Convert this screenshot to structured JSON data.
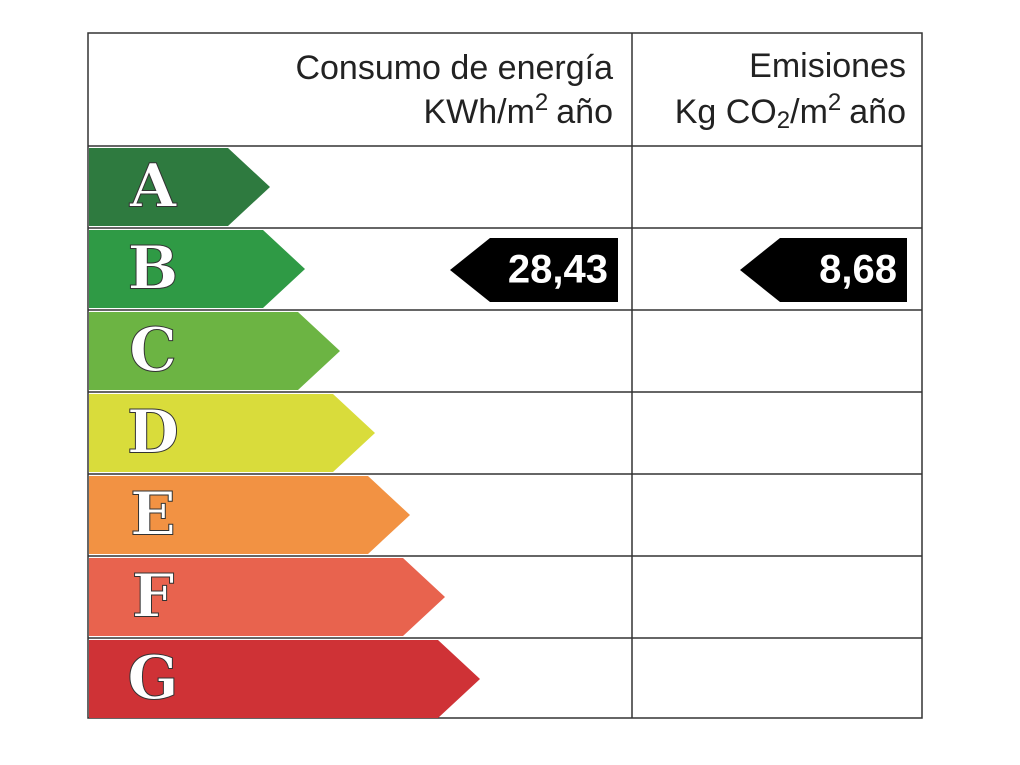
{
  "energy_header": {
    "title": "Consumo de energía",
    "unit_base": "KWh/m",
    "unit_sup": "2",
    "unit_tail": "año"
  },
  "emissions_header": {
    "title": "Emisiones",
    "unit_base": "Kg CO",
    "unit_sub": "2",
    "unit_mid": "/m",
    "unit_sup": "2",
    "unit_tail": "año"
  },
  "rows": [
    {
      "letter": "A",
      "color": "#2e7a3f"
    },
    {
      "letter": "B",
      "color": "#2f9a45",
      "energy": "28,43",
      "emissions": "8,68"
    },
    {
      "letter": "C",
      "color": "#6cb443"
    },
    {
      "letter": "D",
      "color": "#d9dc3b"
    },
    {
      "letter": "E",
      "color": "#f29243"
    },
    {
      "letter": "F",
      "color": "#e8634e"
    },
    {
      "letter": "G",
      "color": "#cf3236"
    }
  ]
}
